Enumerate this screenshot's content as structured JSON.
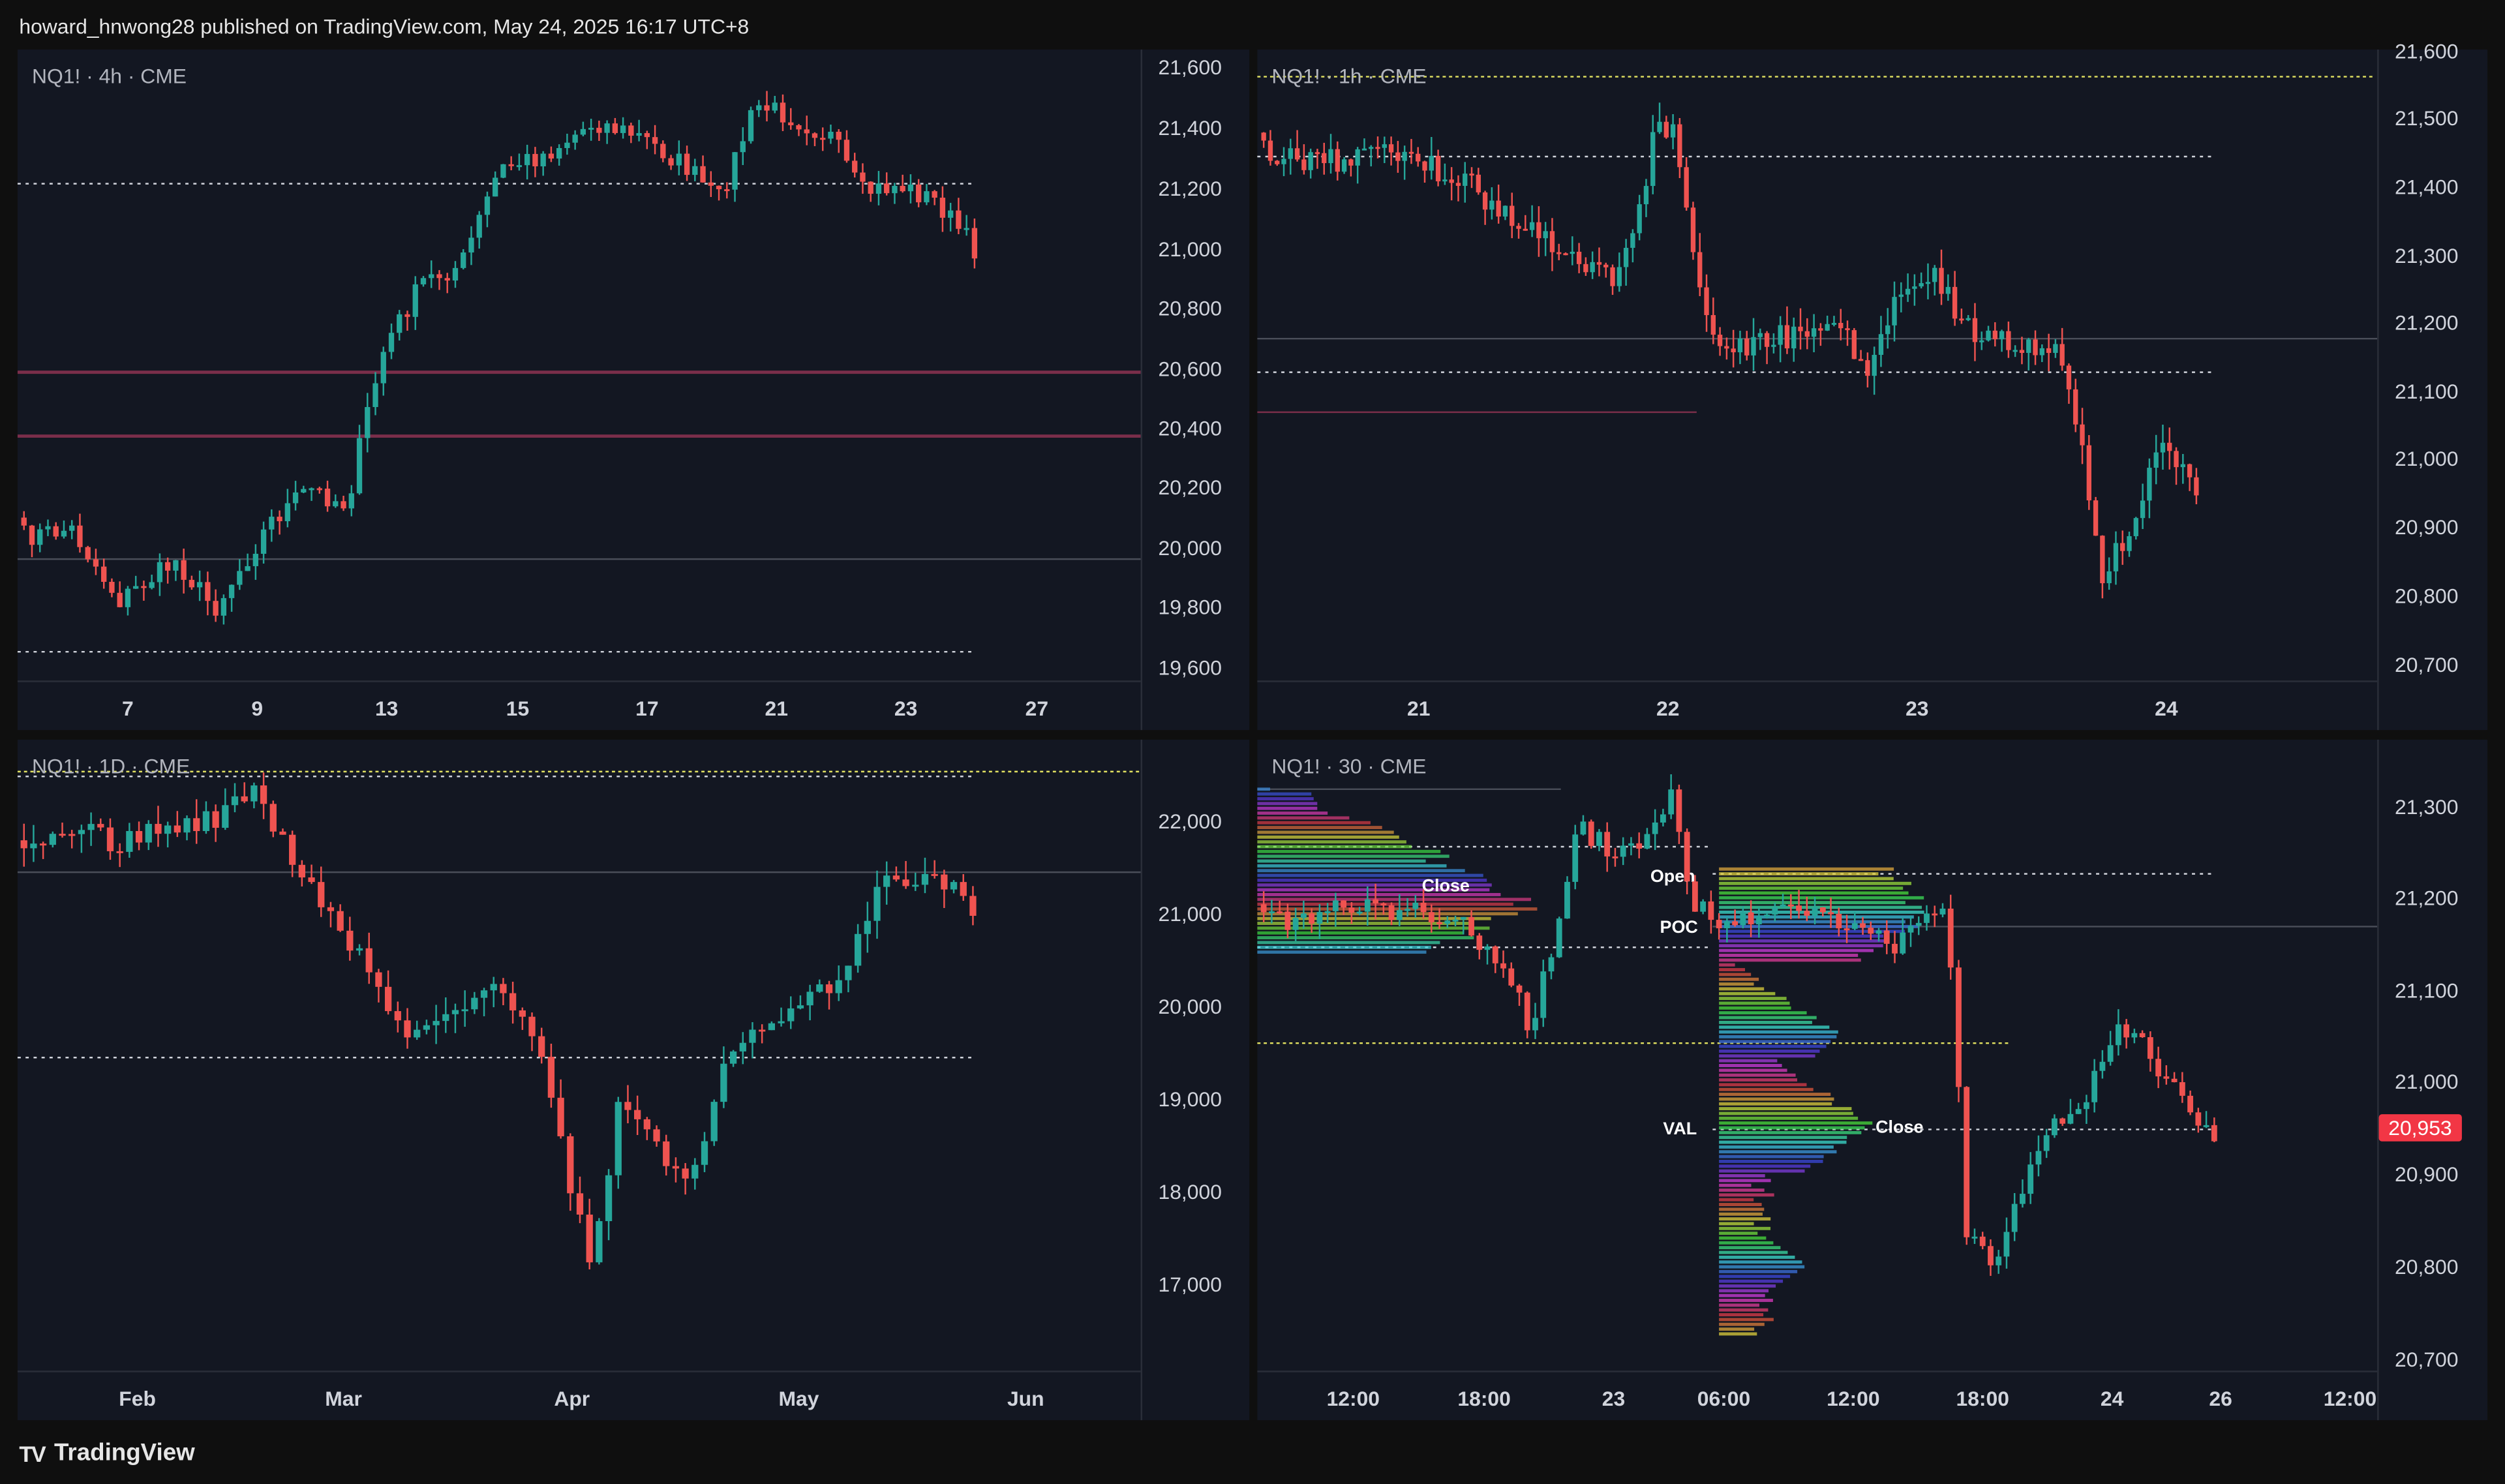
{
  "header": {
    "text": "howard_hnwong28 published on TradingView.com, May 24, 2025 16:17 UTC+8"
  },
  "footer": {
    "brand": "TradingView",
    "logo_icon": "tradingview-logo-icon"
  },
  "colors": {
    "bg": "#131722",
    "up": "#26a69a",
    "down": "#ef5350",
    "grid": "#2a2e39",
    "maroon": "#7a2e4a",
    "yellow": "#e2e261",
    "text": "#d1d4dc"
  },
  "panes": [
    {
      "title": "NQ1! · 4h · CME",
      "y_ticks": [
        "21,600",
        "21,400",
        "21,200",
        "21,000",
        "20,800",
        "20,600",
        "20,400",
        "20,200",
        "20,000",
        "19,800",
        "19,600"
      ],
      "x_ticks": [
        "7",
        "9",
        "13",
        "15",
        "17",
        "21",
        "23",
        "27"
      ]
    },
    {
      "title": "NQ1! · 1h · CME",
      "y_ticks": [
        "21,600",
        "21,500",
        "21,400",
        "21,300",
        "21,200",
        "21,100",
        "21,000",
        "20,900",
        "20,800",
        "20,700"
      ],
      "x_ticks": [
        "21",
        "22",
        "23",
        "24"
      ]
    },
    {
      "title": "NQ1! · 1D · CME",
      "y_ticks": [
        "22,000",
        "21,000",
        "20,000",
        "19,000",
        "18,000",
        "17,000"
      ],
      "x_ticks": [
        "Feb",
        "Mar",
        "Apr",
        "May",
        "Jun"
      ]
    },
    {
      "title": "NQ1! · 30 · CME",
      "y_ticks": [
        "21,300",
        "21,200",
        "21,100",
        "21,000",
        "20,900",
        "20,800",
        "20,700"
      ],
      "x_ticks": [
        "12:00",
        "18:00",
        "23",
        "06:00",
        "12:00",
        "18:00",
        "24",
        "26",
        "12:00"
      ],
      "price_badge": "20,953",
      "profile_labels": {
        "close_upper": "Close",
        "open": "Open",
        "poc": "POC",
        "val": "VAL",
        "close_lower": "Close"
      }
    }
  ]
}
